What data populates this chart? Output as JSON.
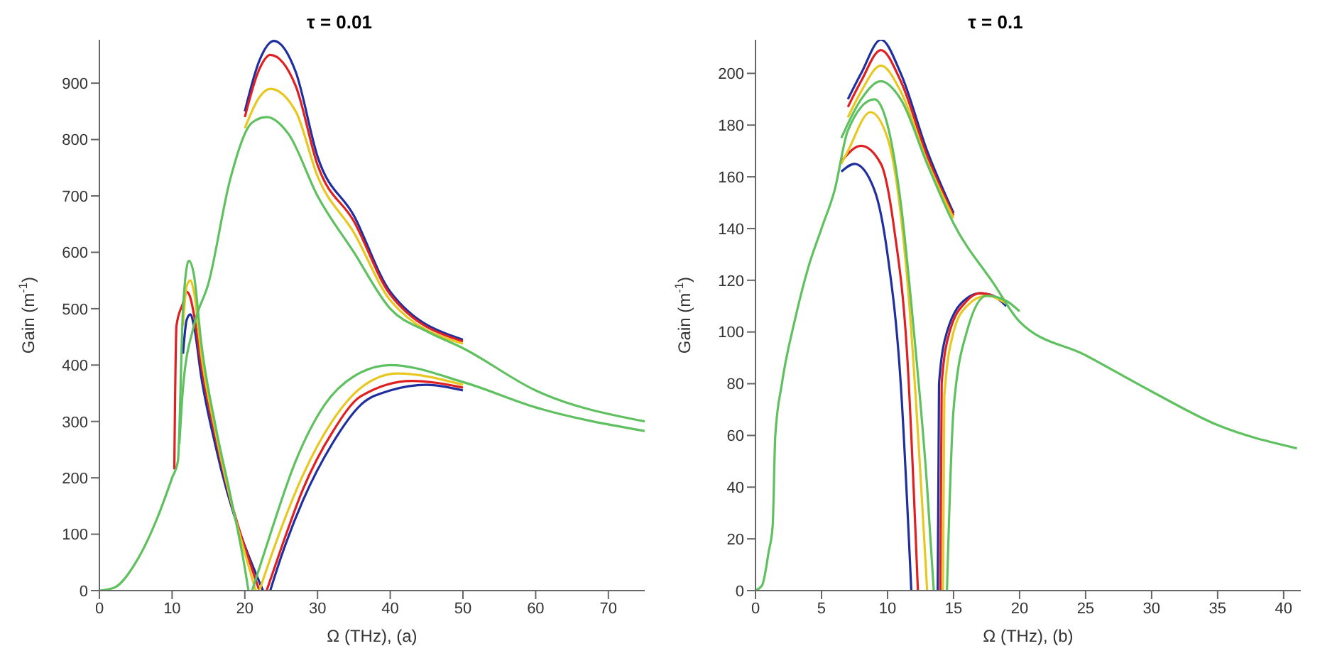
{
  "chart_data": [
    {
      "type": "line",
      "title": "τ = 0.01",
      "xlabel": "Ω (THz),   (a)",
      "ylabel": "Gain (m$^{-1}$)",
      "xlim": [
        0,
        75
      ],
      "ylim": [
        0,
        977
      ],
      "xticks": [
        0,
        10,
        20,
        30,
        40,
        50,
        60,
        70
      ],
      "yticks": [
        0,
        100,
        200,
        300,
        400,
        500,
        600,
        700,
        800,
        900
      ],
      "grid": false,
      "marker": "none",
      "line_style": "solid",
      "series": [
        {
          "color": "#1f2f9f",
          "x": [
            11.5,
            12,
            12.5,
            13,
            14,
            16,
            22.5
          ],
          "values": [
            420,
            480,
            490,
            470,
            380,
            255,
            0
          ]
        },
        {
          "color": "#1f2f9f",
          "x": [
            20,
            22,
            24,
            27,
            30,
            35,
            40,
            50
          ],
          "values": [
            850,
            940,
            975,
            920,
            770,
            665,
            530,
            445
          ]
        },
        {
          "color": "#1f2f9f",
          "x": [
            23.5,
            25,
            28,
            32,
            36,
            40,
            45,
            50
          ],
          "values": [
            0,
            60,
            160,
            260,
            330,
            355,
            365,
            355
          ]
        },
        {
          "color": "#e02020",
          "x": [
            10.3,
            10.6,
            11.5,
            12,
            12.5,
            13,
            14,
            16,
            22
          ],
          "values": [
            215,
            470,
            510,
            530,
            520,
            490,
            400,
            270,
            0
          ]
        },
        {
          "color": "#e02020",
          "x": [
            20,
            22,
            23.5,
            27,
            30,
            35,
            40,
            50
          ],
          "values": [
            840,
            925,
            950,
            895,
            755,
            655,
            525,
            442
          ]
        },
        {
          "color": "#e02020",
          "x": [
            23,
            25,
            28,
            32,
            36,
            43,
            50
          ],
          "values": [
            0,
            75,
            180,
            280,
            345,
            372,
            360
          ]
        },
        {
          "color": "#e8c820",
          "x": [
            11.5,
            12,
            12.5,
            13,
            14,
            16,
            21.5
          ],
          "values": [
            470,
            540,
            550,
            530,
            420,
            280,
            0
          ]
        },
        {
          "color": "#e8c820",
          "x": [
            20,
            22,
            23.5,
            27,
            30,
            35,
            40,
            50
          ],
          "values": [
            820,
            875,
            890,
            850,
            735,
            635,
            515,
            438
          ]
        },
        {
          "color": "#e8c820",
          "x": [
            22,
            24,
            28,
            32,
            36,
            41,
            50
          ],
          "values": [
            0,
            75,
            205,
            300,
            360,
            385,
            365
          ]
        },
        {
          "color": "#5fc05f",
          "x": [
            0,
            2,
            5,
            8,
            10,
            10.8,
            11.5,
            12.3,
            13,
            14,
            16,
            18,
            20,
            20.5
          ],
          "values": [
            0,
            5,
            50,
            130,
            200,
            230,
            500,
            585,
            560,
            440,
            290,
            170,
            40,
            0
          ]
        },
        {
          "color": "#5fc05f",
          "x": [
            11,
            11.5,
            13,
            15,
            18,
            21,
            23,
            26,
            30,
            35,
            40,
            45,
            50,
            60,
            75
          ],
          "values": [
            260,
            360,
            470,
            545,
            730,
            830,
            840,
            810,
            700,
            600,
            500,
            460,
            430,
            355,
            300
          ]
        },
        {
          "color": "#5fc05f",
          "x": [
            21,
            23,
            27,
            31,
            35,
            40,
            50,
            60,
            75
          ],
          "values": [
            0,
            80,
            230,
            330,
            380,
            400,
            370,
            325,
            283
          ]
        }
      ]
    },
    {
      "type": "line",
      "title": "τ = 0.1",
      "xlabel": "Ω (THz),   (b)",
      "ylabel": "Gain (m$^{-1}$)",
      "xlim": [
        0,
        41.3
      ],
      "ylim": [
        0,
        213
      ],
      "xticks": [
        0,
        5,
        10,
        15,
        20,
        25,
        30,
        35,
        40
      ],
      "yticks": [
        0,
        20,
        40,
        60,
        80,
        100,
        120,
        140,
        160,
        180,
        200
      ],
      "grid": false,
      "marker": "none",
      "line_style": "solid",
      "series": [
        {
          "color": "#1f2f9f",
          "x": [
            6.5,
            7.5,
            9,
            10,
            11,
            11.8
          ],
          "values": [
            162,
            165,
            155,
            130,
            80,
            0
          ]
        },
        {
          "color": "#1f2f9f",
          "x": [
            7,
            8,
            9.5,
            11,
            13,
            15
          ],
          "values": [
            190,
            200,
            213,
            200,
            170,
            146
          ]
        },
        {
          "color": "#1f2f9f",
          "x": [
            13.8,
            13.9,
            14.5,
            16,
            17,
            18,
            19
          ],
          "values": [
            0,
            80,
            100,
            113,
            115,
            114,
            110
          ]
        },
        {
          "color": "#e02020",
          "x": [
            6.5,
            8,
            9.5,
            10.5,
            11.5,
            12.3
          ],
          "values": [
            166,
            172,
            165,
            140,
            90,
            0
          ]
        },
        {
          "color": "#e02020",
          "x": [
            7,
            8,
            9.5,
            11,
            13,
            15
          ],
          "values": [
            187,
            197,
            209,
            197,
            168,
            145
          ]
        },
        {
          "color": "#e02020",
          "x": [
            14,
            14.1,
            14.7,
            16,
            17,
            18,
            19
          ],
          "values": [
            0,
            80,
            100,
            112,
            115,
            114,
            111
          ]
        },
        {
          "color": "#e8c820",
          "x": [
            6.5,
            7,
            8.7,
            10,
            11.5,
            13
          ],
          "values": [
            165,
            170,
            185,
            175,
            120,
            0
          ]
        },
        {
          "color": "#e8c820",
          "x": [
            7,
            8,
            9.5,
            11,
            13,
            15
          ],
          "values": [
            183,
            193,
            203,
            193,
            166,
            144
          ]
        },
        {
          "color": "#e8c820",
          "x": [
            14.2,
            14.3,
            15,
            16,
            17.5,
            19
          ],
          "values": [
            0,
            75,
            100,
            110,
            114,
            111
          ]
        },
        {
          "color": "#5fc05f",
          "x": [
            0,
            0.5,
            1,
            1.3,
            1.5,
            2,
            3,
            4,
            5,
            6,
            7,
            9,
            10,
            11,
            12,
            13,
            13.5
          ],
          "values": [
            0,
            2,
            15,
            25,
            60,
            80,
            105,
            125,
            140,
            155,
            178,
            190,
            180,
            150,
            100,
            40,
            0
          ]
        },
        {
          "color": "#5fc05f",
          "x": [
            6.5,
            8,
            9.5,
            11,
            13,
            15,
            18,
            20,
            25,
            30,
            35,
            41
          ],
          "values": [
            175,
            190,
            197,
            190,
            165,
            142,
            119,
            104,
            91,
            77,
            64,
            55
          ]
        },
        {
          "color": "#5fc05f",
          "x": [
            14.5,
            15,
            16,
            17.5,
            19,
            20
          ],
          "values": [
            0,
            70,
            100,
            114,
            112,
            108
          ]
        }
      ]
    }
  ]
}
